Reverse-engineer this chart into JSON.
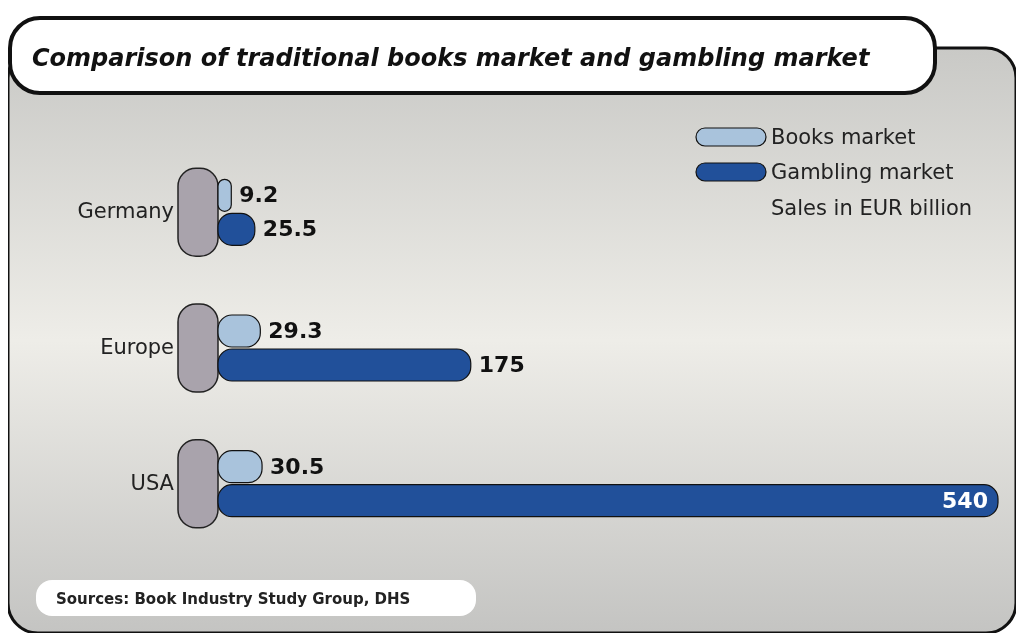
{
  "chart_data": {
    "type": "bar",
    "orientation": "horizontal",
    "title": "Comparison of traditional books market and gambling market",
    "categories": [
      "Germany",
      "Europe",
      "USA"
    ],
    "series": [
      {
        "name": "Books market",
        "color": "#a9c3dc",
        "values": [
          9.2,
          29.3,
          30.5
        ]
      },
      {
        "name": "Gambling market",
        "color": "#21509a",
        "values": [
          25.5,
          175,
          540
        ]
      }
    ],
    "data_labels": true,
    "legend": "top right",
    "annotations": [
      "Sales in EUR billion",
      "Sources: Book Industry Study Group, DHS"
    ]
  }
}
